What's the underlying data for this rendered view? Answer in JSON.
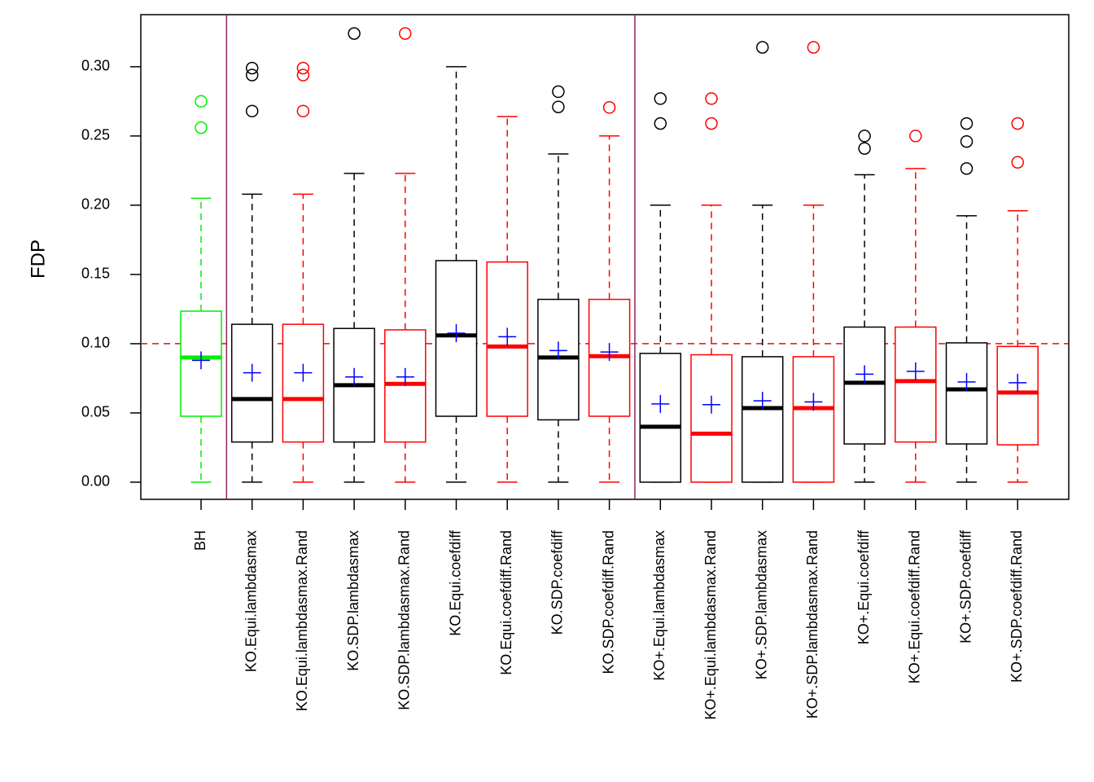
{
  "chart_data": {
    "type": "boxplot",
    "y_label": "FDP",
    "ylim": [
      -0.0124,
      0.3376
    ],
    "yticks": [
      {
        "value": 0,
        "label": "0.00"
      },
      {
        "value": 0.05,
        "label": "0.05"
      },
      {
        "value": 0.1,
        "label": "0.10"
      },
      {
        "value": 0.15,
        "label": "0.15"
      },
      {
        "value": 0.2,
        "label": "0.20"
      },
      {
        "value": 0.25,
        "label": "0.25"
      },
      {
        "value": 0.3,
        "label": "0.30"
      }
    ],
    "reference_line": {
      "value": 0.1,
      "color": "#e01010"
    },
    "group_breaks": [
      1,
      9
    ],
    "separator_color": "#8b2560",
    "mean_color": "#0000ff",
    "boxes": [
      {
        "label": "BH",
        "color": "#00ee00",
        "low": 0,
        "q1": 0.0476,
        "median": 0.09,
        "q3": 0.1235,
        "high": 0.205,
        "mean": 0.088,
        "outliers": [
          0.275,
          0.256
        ]
      },
      {
        "label": "KO.Equi.lambdasmax",
        "color": "#000000",
        "low": 0,
        "q1": 0.029,
        "median": 0.06,
        "q3": 0.114,
        "high": 0.208,
        "mean": 0.079,
        "outliers": [
          0.299,
          0.294,
          0.268
        ]
      },
      {
        "label": "KO.Equi.lambdasmax.Rand",
        "color": "#ff0000",
        "low": 0,
        "q1": 0.029,
        "median": 0.06,
        "q3": 0.114,
        "high": 0.208,
        "mean": 0.079,
        "outliers": [
          0.299,
          0.294,
          0.268
        ]
      },
      {
        "label": "KO.SDP.lambdasmax",
        "color": "#000000",
        "low": 0,
        "q1": 0.029,
        "median": 0.07,
        "q3": 0.111,
        "high": 0.223,
        "mean": 0.076,
        "outliers": [
          0.324
        ]
      },
      {
        "label": "KO.SDP.lambdasmax.Rand",
        "color": "#ff0000",
        "low": 0,
        "q1": 0.029,
        "median": 0.071,
        "q3": 0.11,
        "high": 0.223,
        "mean": 0.076,
        "outliers": [
          0.324
        ]
      },
      {
        "label": "KO.Equi.coefdiff",
        "color": "#000000",
        "low": 0,
        "q1": 0.0476,
        "median": 0.106,
        "q3": 0.16,
        "high": 0.3,
        "mean": 0.1076,
        "outliers": []
      },
      {
        "label": "KO.Equi.coefdiff.Rand",
        "color": "#ff0000",
        "low": 0,
        "q1": 0.0476,
        "median": 0.098,
        "q3": 0.159,
        "high": 0.264,
        "mean": 0.105,
        "outliers": []
      },
      {
        "label": "KO.SDP.coefdiff",
        "color": "#000000",
        "low": 0,
        "q1": 0.045,
        "median": 0.09,
        "q3": 0.132,
        "high": 0.237,
        "mean": 0.095,
        "outliers": [
          0.282,
          0.271
        ]
      },
      {
        "label": "KO.SDP.coefdiff.Rand",
        "color": "#ff0000",
        "low": 0,
        "q1": 0.0476,
        "median": 0.091,
        "q3": 0.132,
        "high": 0.25,
        "mean": 0.094,
        "outliers": [
          0.2706
        ]
      },
      {
        "label": "KO+.Equi.lambdasmax",
        "color": "#000000",
        "low": 0,
        "q1": 0,
        "median": 0.04,
        "q3": 0.093,
        "high": 0.2,
        "mean": 0.0565,
        "outliers": [
          0.277,
          0.259
        ]
      },
      {
        "label": "KO+.Equi.lambdasmax.Rand",
        "color": "#ff0000",
        "low": 0,
        "q1": 0,
        "median": 0.035,
        "q3": 0.092,
        "high": 0.2,
        "mean": 0.056,
        "outliers": [
          0.277,
          0.259
        ]
      },
      {
        "label": "KO+.SDP.lambdasmax",
        "color": "#000000",
        "low": 0,
        "q1": 0,
        "median": 0.0535,
        "q3": 0.0906,
        "high": 0.2,
        "mean": 0.0588,
        "outliers": [
          0.314
        ]
      },
      {
        "label": "KO+.SDP.lambdasmax.Rand",
        "color": "#ff0000",
        "low": 0,
        "q1": 0,
        "median": 0.0535,
        "q3": 0.0906,
        "high": 0.2,
        "mean": 0.058,
        "outliers": [
          0.314
        ]
      },
      {
        "label": "KO+.Equi.coefdiff",
        "color": "#000000",
        "low": 0,
        "q1": 0.0276,
        "median": 0.0718,
        "q3": 0.112,
        "high": 0.222,
        "mean": 0.078,
        "outliers": [
          0.25,
          0.241
        ]
      },
      {
        "label": "KO+.Equi.coefdiff.Rand",
        "color": "#ff0000",
        "low": 0,
        "q1": 0.029,
        "median": 0.073,
        "q3": 0.112,
        "high": 0.2265,
        "mean": 0.08,
        "outliers": [
          0.25
        ]
      },
      {
        "label": "KO+.SDP.coefdiff",
        "color": "#000000",
        "low": 0,
        "q1": 0.0276,
        "median": 0.067,
        "q3": 0.1006,
        "high": 0.1924,
        "mean": 0.0724,
        "outliers": [
          0.259,
          0.246,
          0.2265
        ]
      },
      {
        "label": "KO+.SDP.coefdiff.Rand",
        "color": "#ff0000",
        "low": 0,
        "q1": 0.027,
        "median": 0.0647,
        "q3": 0.098,
        "high": 0.196,
        "mean": 0.0718,
        "outliers": [
          0.259,
          0.231
        ]
      }
    ]
  }
}
